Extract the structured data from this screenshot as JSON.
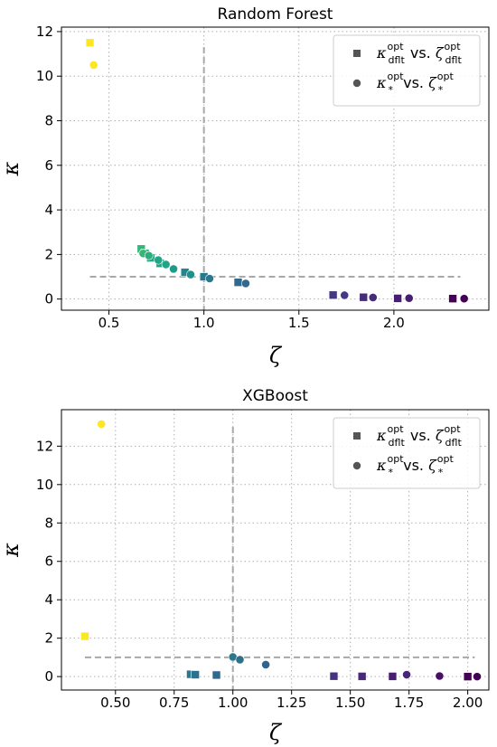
{
  "chart_data": [
    {
      "type": "scatter",
      "title": "Random Forest",
      "xlabel": "ζ",
      "ylabel": "κ",
      "xlim": [
        0.25,
        2.5
      ],
      "ylim": [
        -0.5,
        12.2
      ],
      "xticks": [
        0.5,
        1.0,
        1.5,
        2.0
      ],
      "xtick_labels": [
        "0.5",
        "1.0",
        "1.5",
        "2.0"
      ],
      "yticks": [
        0,
        2,
        4,
        6,
        8,
        10,
        12
      ],
      "ytick_labels": [
        "0",
        "2",
        "4",
        "6",
        "8",
        "10",
        "12"
      ],
      "grid": "dotted",
      "legend": "top-right",
      "reference_lines": {
        "horizontal_y": 1.0,
        "vertical_x": 1.0,
        "vertical_ymax": 11.3,
        "hline_x": [
          0.4,
          2.35
        ]
      },
      "series": [
        {
          "name": "κ_dflt^opt vs. ζ_dflt^opt",
          "marker": "square",
          "points": [
            {
              "x": 0.4,
              "y": 11.5,
              "color": "#fde725"
            },
            {
              "x": 0.67,
              "y": 2.25,
              "color": "#35b779"
            },
            {
              "x": 0.69,
              "y": 2.05,
              "color": "#2ab07f"
            },
            {
              "x": 0.72,
              "y": 1.85,
              "color": "#22a884"
            },
            {
              "x": 0.77,
              "y": 1.6,
              "color": "#21a386"
            },
            {
              "x": 0.9,
              "y": 1.2,
              "color": "#25858e"
            },
            {
              "x": 1.0,
              "y": 1.0,
              "color": "#2a788e"
            },
            {
              "x": 1.18,
              "y": 0.75,
              "color": "#31688e"
            },
            {
              "x": 1.68,
              "y": 0.18,
              "color": "#443983"
            },
            {
              "x": 1.84,
              "y": 0.08,
              "color": "#472c7a"
            },
            {
              "x": 2.02,
              "y": 0.03,
              "color": "#481f70"
            },
            {
              "x": 2.31,
              "y": 0.02,
              "color": "#440154"
            }
          ]
        },
        {
          "name": "κ_*^opt vs. ζ_*^opt",
          "marker": "circle",
          "points": [
            {
              "x": 0.42,
              "y": 10.5,
              "color": "#fde725"
            },
            {
              "x": 0.68,
              "y": 2.05,
              "color": "#35b779"
            },
            {
              "x": 0.71,
              "y": 1.95,
              "color": "#29af7f"
            },
            {
              "x": 0.76,
              "y": 1.75,
              "color": "#21a685"
            },
            {
              "x": 0.8,
              "y": 1.55,
              "color": "#20a386"
            },
            {
              "x": 0.84,
              "y": 1.35,
              "color": "#1f9a8a"
            },
            {
              "x": 0.93,
              "y": 1.1,
              "color": "#21908d"
            },
            {
              "x": 1.03,
              "y": 0.92,
              "color": "#2a788e"
            },
            {
              "x": 1.22,
              "y": 0.7,
              "color": "#31688e"
            },
            {
              "x": 1.74,
              "y": 0.17,
              "color": "#443983"
            },
            {
              "x": 1.89,
              "y": 0.07,
              "color": "#472c7a"
            },
            {
              "x": 2.08,
              "y": 0.04,
              "color": "#481f70"
            },
            {
              "x": 2.37,
              "y": 0.02,
              "color": "#440154"
            }
          ]
        }
      ]
    },
    {
      "type": "scatter",
      "title": "XGBoost",
      "xlabel": "ζ",
      "ylabel": "κ",
      "xlim": [
        0.27,
        2.09
      ],
      "ylim": [
        -0.7,
        13.9
      ],
      "xticks": [
        0.5,
        0.75,
        1.0,
        1.25,
        1.5,
        1.75,
        2.0
      ],
      "xtick_labels": [
        "0.50",
        "0.75",
        "1.00",
        "1.25",
        "1.50",
        "1.75",
        "2.00"
      ],
      "yticks": [
        0,
        2,
        4,
        6,
        8,
        10,
        12
      ],
      "ytick_labels": [
        "0",
        "2",
        "4",
        "6",
        "8",
        "10",
        "12"
      ],
      "grid": "dotted",
      "legend": "top-right",
      "reference_lines": {
        "horizontal_y": 1.0,
        "vertical_x": 1.0,
        "vertical_ymax": 13.0,
        "hline_x": [
          0.37,
          2.03
        ]
      },
      "series": [
        {
          "name": "κ_dflt^opt vs. ζ_dflt^opt",
          "marker": "square",
          "points": [
            {
              "x": 0.37,
              "y": 2.1,
              "color": "#fde725"
            },
            {
              "x": 0.82,
              "y": 0.12,
              "color": "#2a788e"
            },
            {
              "x": 0.84,
              "y": 0.1,
              "color": "#2c728e"
            },
            {
              "x": 0.93,
              "y": 0.08,
              "color": "#31688e"
            },
            {
              "x": 1.43,
              "y": 0.02,
              "color": "#46327e"
            },
            {
              "x": 1.55,
              "y": 0.01,
              "color": "#482878"
            },
            {
              "x": 1.68,
              "y": 0.01,
              "color": "#481d6f"
            },
            {
              "x": 2.0,
              "y": 0.0,
              "color": "#440154"
            }
          ]
        },
        {
          "name": "κ_*^opt vs. ζ_*^opt",
          "marker": "circle",
          "points": [
            {
              "x": 0.44,
              "y": 13.15,
              "color": "#fde725"
            },
            {
              "x": 1.0,
              "y": 1.02,
              "color": "#2a788e"
            },
            {
              "x": 1.03,
              "y": 0.88,
              "color": "#2d708e"
            },
            {
              "x": 1.14,
              "y": 0.62,
              "color": "#33638d"
            },
            {
              "x": 1.74,
              "y": 0.1,
              "color": "#482576"
            },
            {
              "x": 1.88,
              "y": 0.03,
              "color": "#471063"
            },
            {
              "x": 2.04,
              "y": 0.0,
              "color": "#440154"
            }
          ]
        }
      ]
    }
  ],
  "colors": {
    "axis": "#000000",
    "grid": "#b0b0b0",
    "reference": "#a8a8a8",
    "legend_marker": "#555555",
    "legend_border": "#cccccc"
  }
}
